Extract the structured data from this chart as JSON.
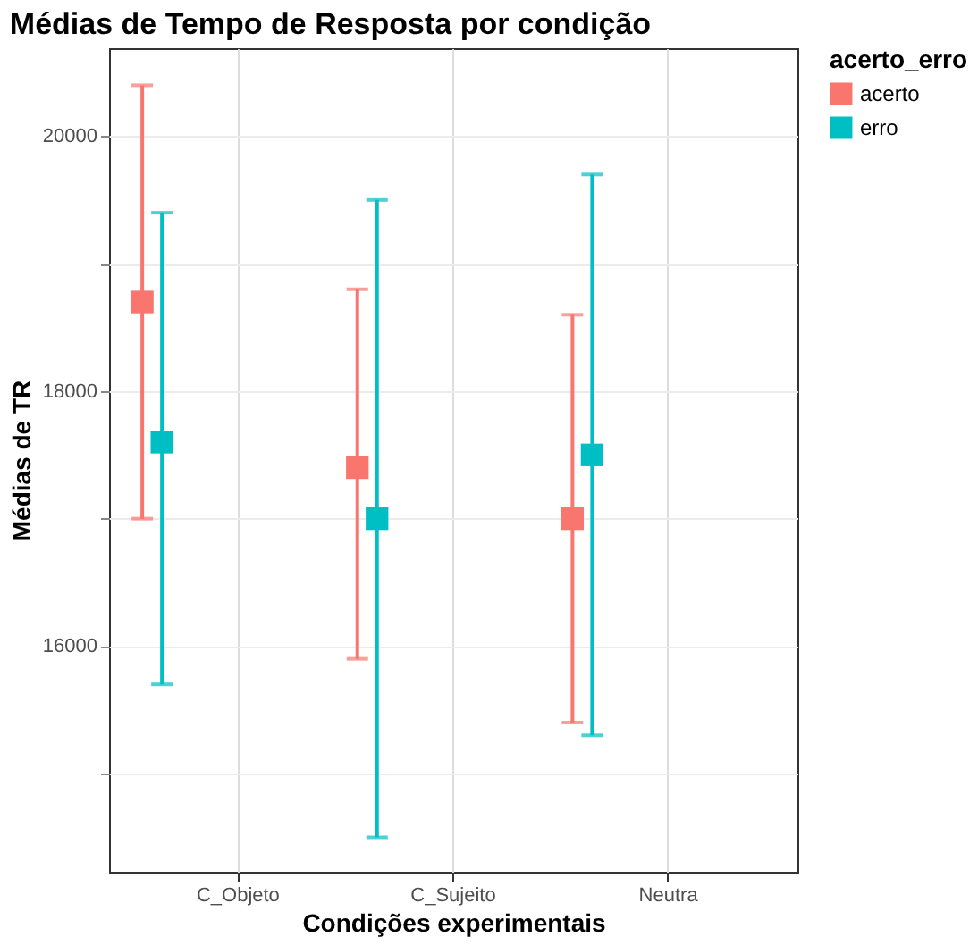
{
  "chart_data": {
    "type": "scatter",
    "title": "Médias de Tempo de Resposta por condição",
    "xlabel": "Condições experimentais",
    "ylabel": "Médias de TR",
    "legend_title": "acerto_erro",
    "categories": [
      "C_Objeto",
      "C_Sujeito",
      "Neutra"
    ],
    "series": [
      {
        "name": "acerto",
        "color": "#f8766d",
        "values": [
          18700,
          17400,
          17000
        ],
        "errors": [
          [
            17000,
            20400
          ],
          [
            15900,
            18800
          ],
          [
            15400,
            18600
          ]
        ]
      },
      {
        "name": "erro",
        "color": "#00bfc4",
        "values": [
          17600,
          17000,
          17500
        ],
        "errors": [
          [
            15700,
            19400
          ],
          [
            14500,
            19500
          ],
          [
            15300,
            19700
          ]
        ]
      }
    ],
    "ylim": [
      14230,
      20690
    ],
    "yticks": [
      {
        "value": 15000,
        "label": null
      },
      16000,
      {
        "value": 17000,
        "label": null
      },
      18000,
      {
        "value": 19000,
        "label": null
      },
      20000
    ],
    "grid": true,
    "legend": "right",
    "marker": "square"
  }
}
